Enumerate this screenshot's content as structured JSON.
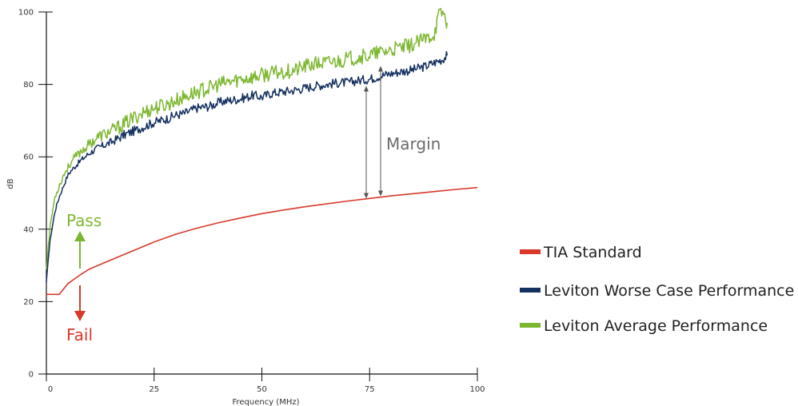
{
  "chart_data": {
    "type": "line",
    "xlabel": "Frequency (MHz)",
    "ylabel": "dB",
    "xlim": [
      0,
      100
    ],
    "ylim": [
      0,
      100
    ],
    "x_ticks": [
      0,
      25,
      50,
      75,
      100
    ],
    "y_ticks": [
      0,
      20,
      40,
      60,
      80,
      100
    ],
    "grid": false,
    "legend_position": "right",
    "series": [
      {
        "name": "TIA Standard",
        "color": "#d9382a",
        "x": [
          0,
          3,
          5,
          8,
          10,
          15,
          20,
          25,
          30,
          35,
          40,
          45,
          50,
          55,
          60,
          65,
          70,
          75,
          80,
          85,
          90,
          95,
          100
        ],
        "y": [
          22,
          22,
          25,
          27.5,
          29,
          31.5,
          34,
          36.5,
          38.6,
          40.3,
          41.8,
          43.1,
          44.3,
          45.3,
          46.2,
          47.0,
          47.8,
          48.5,
          49.2,
          49.8,
          50.4,
          51.0,
          51.5
        ]
      },
      {
        "name": "Leviton Worse Case Performance",
        "color": "#14305f",
        "x": [
          0,
          0.5,
          1,
          2,
          3,
          4,
          5,
          6,
          8,
          10,
          12,
          15,
          18,
          20,
          22,
          25,
          28,
          30,
          32,
          35,
          38,
          40,
          42,
          45,
          48,
          50,
          52,
          55,
          58,
          60,
          62,
          65,
          68,
          70,
          72,
          75,
          78,
          80,
          82,
          85,
          88,
          90,
          92,
          93
        ],
        "y": [
          25,
          33,
          38,
          45,
          49,
          52,
          55,
          56.5,
          59,
          61,
          62.5,
          64,
          66,
          67,
          68,
          69.5,
          70.5,
          71.5,
          72,
          73.5,
          74,
          75,
          75.5,
          76,
          77,
          76.5,
          77.5,
          78,
          78.5,
          79,
          79.5,
          80,
          80.5,
          80.5,
          81,
          81.5,
          82.5,
          83,
          83.5,
          84,
          85,
          86,
          87,
          88
        ]
      },
      {
        "name": "Leviton Average Performance",
        "color": "#7cb730",
        "x": [
          0,
          0.5,
          1,
          2,
          3,
          4,
          5,
          6,
          8,
          10,
          12,
          15,
          18,
          20,
          22,
          25,
          28,
          30,
          32,
          35,
          38,
          40,
          42,
          45,
          48,
          50,
          52,
          55,
          58,
          60,
          62,
          65,
          68,
          70,
          72,
          75,
          78,
          80,
          82,
          85,
          88,
          90,
          91,
          92,
          93
        ],
        "y": [
          29,
          36,
          42,
          49,
          52,
          55,
          57,
          59,
          61.5,
          63.5,
          65.5,
          67,
          69,
          70.5,
          72,
          73.5,
          74.5,
          75.5,
          76.5,
          78,
          79,
          80,
          80.5,
          81.5,
          82,
          82.5,
          83,
          83.5,
          84,
          85,
          85.5,
          86,
          86.5,
          87,
          87.5,
          88,
          89,
          89.5,
          90,
          91,
          92.5,
          94,
          99,
          100,
          97
        ]
      }
    ],
    "annotations": {
      "pass": "Pass",
      "fail": "Fail",
      "margin": "Margin"
    }
  }
}
